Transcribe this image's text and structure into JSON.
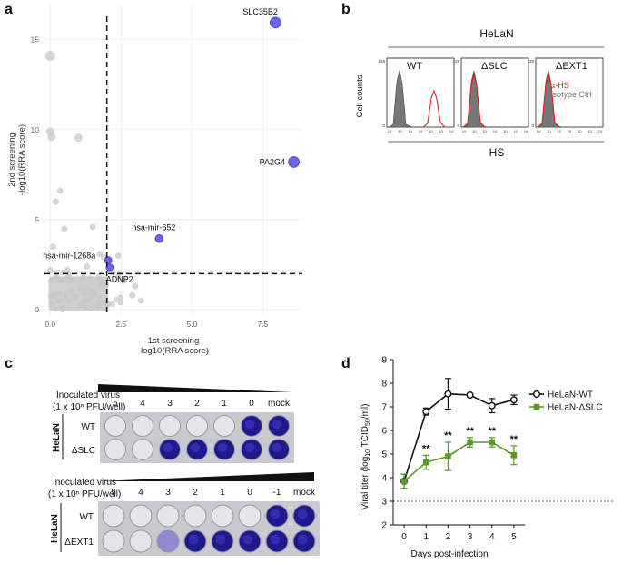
{
  "panels": {
    "a": "a",
    "b": "b",
    "c": "c",
    "d": "d"
  },
  "panel_a": {
    "xlabel_line1": "1st screening",
    "xlabel_line2": "-log10(RRA score)",
    "ylabel_line1": "2nd screening",
    "ylabel_line2": "-log10(RRA score)",
    "x_ticks": [
      "0.0",
      "2.5",
      "5.0",
      "7.5"
    ],
    "y_ticks": [
      "0",
      "5",
      "10",
      "15"
    ]
  },
  "panel_b": {
    "cell_line": "HeLaN",
    "ylabel": "Cell counts",
    "xlabel": "HS",
    "y_max_tick": "128",
    "y_min_tick": "0",
    "x_tick_labels": [
      "10",
      "10",
      "10",
      "10",
      "10",
      "10",
      "10"
    ],
    "subpanels": [
      "WT",
      "ΔSLC",
      "ΔEXT1"
    ],
    "legend": [
      "α-HS",
      "Isotype Ctrl"
    ],
    "colors": {
      "alpha_hs": "#e0201e",
      "isotype": "#666666"
    }
  },
  "panel_c": {
    "inoculated_label": "Inoculated virus",
    "pfu_label": "(1 x 10ⁿ PFU/well)",
    "row_group": "HeLaN",
    "plate1": {
      "columns": [
        "5",
        "4",
        "3",
        "2",
        "1",
        "0",
        "mock"
      ],
      "rows": [
        "WT",
        "ΔSLC"
      ]
    },
    "plate2": {
      "columns": [
        "5",
        "4",
        "3",
        "2",
        "1",
        "0",
        "-1",
        "mock"
      ],
      "rows": [
        "WT",
        "ΔEXT1"
      ]
    }
  },
  "chart_data": [
    {
      "type": "scatter",
      "title": "",
      "xlabel": "1st screening -log10(RRA score)",
      "ylabel": "2nd screening -log10(RRA score)",
      "xlim": [
        -0.2,
        8.9
      ],
      "ylim": [
        -0.3,
        16.9
      ],
      "grid": true,
      "threshold_x": 2.0,
      "threshold_y": 2.0,
      "highlighted": [
        {
          "label": "SLC35B2",
          "x": 7.95,
          "y": 15.95
        },
        {
          "label": "PA2G4",
          "x": 8.6,
          "y": 8.2
        },
        {
          "label": "hsa-mir-652",
          "x": 3.85,
          "y": 3.95
        },
        {
          "label": "hsa-mir-1268a",
          "x": 2.05,
          "y": 2.75
        },
        {
          "label": "ADNP2",
          "x": 2.1,
          "y": 2.35
        }
      ],
      "background_points": [
        {
          "x": 0.0,
          "y": 14.1
        },
        {
          "x": 0.0,
          "y": 9.9
        },
        {
          "x": 0.05,
          "y": 9.6
        },
        {
          "x": 1.0,
          "y": 9.55
        },
        {
          "x": 0.35,
          "y": 6.6
        },
        {
          "x": 0.2,
          "y": 6.0
        },
        {
          "x": 0.5,
          "y": 4.5
        },
        {
          "x": 0.1,
          "y": 3.5
        },
        {
          "x": 1.5,
          "y": 4.6
        },
        {
          "x": 2.4,
          "y": 3.0
        },
        {
          "x": 2.6,
          "y": 1.6
        },
        {
          "x": 3.0,
          "y": 1.3
        },
        {
          "x": 3.2,
          "y": 0.5
        },
        {
          "x": 2.9,
          "y": 0.8
        },
        {
          "x": 1.9,
          "y": 2.9
        },
        {
          "x": 0.6,
          "y": 2.2
        },
        {
          "x": 1.3,
          "y": 2.4
        },
        {
          "x": 0.0,
          "y": 2.2
        },
        {
          "x": 1.75,
          "y": 3.1
        }
      ]
    },
    {
      "type": "line",
      "title": "",
      "xlabel": "Days post-infection",
      "ylabel": "Viral titer (log10 TCID50/ml)",
      "x": [
        0,
        1,
        2,
        3,
        4,
        5
      ],
      "xlim": [
        -0.5,
        5.5
      ],
      "ylim": [
        2,
        9
      ],
      "x_ticks": [
        "0",
        "1",
        "2",
        "3",
        "4",
        "5"
      ],
      "y_ticks": [
        "2",
        "3",
        "4",
        "5",
        "6",
        "7",
        "8",
        "9"
      ],
      "reference_line_y": 3,
      "significance": [
        "",
        "**",
        "**",
        "**",
        "**",
        "**"
      ],
      "series": [
        {
          "name": "HeLaN-WT",
          "values": [
            3.85,
            6.8,
            7.55,
            7.5,
            7.05,
            7.3
          ],
          "errors": [
            0.3,
            0.15,
            0.65,
            0.05,
            0.3,
            0.2
          ],
          "color": "#111111"
        },
        {
          "name": "HeLaN-ΔSLC",
          "values": [
            3.85,
            4.65,
            4.9,
            5.5,
            5.5,
            4.95
          ],
          "errors": [
            0.3,
            0.3,
            0.6,
            0.2,
            0.2,
            0.4
          ],
          "color": "#5a9a1e"
        }
      ]
    }
  ]
}
